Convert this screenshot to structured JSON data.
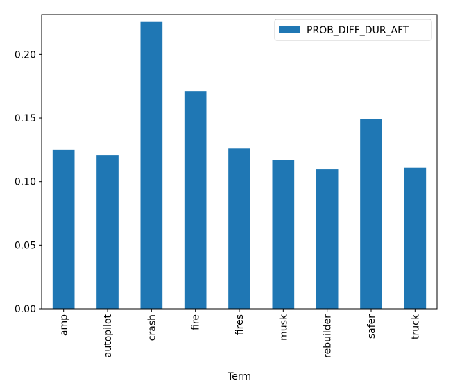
{
  "chart_data": {
    "type": "bar",
    "xlabel": "Term",
    "ylabel": "",
    "ylim": [
      0,
      0.2313
    ],
    "yticks": [
      "0.00",
      "0.05",
      "0.10",
      "0.15",
      "0.20"
    ],
    "legend_placement": "top-right",
    "grid": false,
    "categories": [
      "amp",
      "autopilot",
      "crash",
      "fire",
      "fires",
      "musk",
      "rebuilder",
      "safer",
      "truck"
    ],
    "series": [
      {
        "name": "PROB_DIFF_DUR_AFT",
        "color": "#1f77b4",
        "values": [
          0.125,
          0.1205,
          0.226,
          0.1712,
          0.1264,
          0.1168,
          0.1096,
          0.1494,
          0.1109
        ]
      }
    ]
  }
}
